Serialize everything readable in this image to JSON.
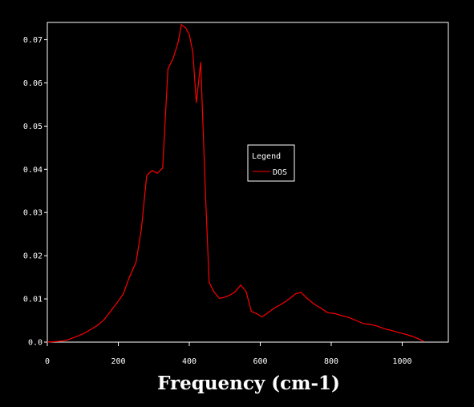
{
  "chart_data": {
    "type": "line",
    "xlabel": "Frequency (cm-1)",
    "ylabel": "",
    "xlim": [
      0,
      1130
    ],
    "ylim": [
      0,
      0.074
    ],
    "x_ticks": [
      {
        "value": 0,
        "label": "0"
      },
      {
        "value": 200,
        "label": "200"
      },
      {
        "value": 400,
        "label": "400"
      },
      {
        "value": 600,
        "label": "600"
      },
      {
        "value": 800,
        "label": "800"
      },
      {
        "value": 1000,
        "label": "1000"
      }
    ],
    "y_ticks": [
      {
        "value": 0.0,
        "label": "0.0"
      },
      {
        "value": 0.01,
        "label": "0.01"
      },
      {
        "value": 0.02,
        "label": "0.02"
      },
      {
        "value": 0.03,
        "label": "0.03"
      },
      {
        "value": 0.04,
        "label": "0.04"
      },
      {
        "value": 0.05,
        "label": "0.05"
      },
      {
        "value": 0.06,
        "label": "0.06"
      },
      {
        "value": 0.07,
        "label": "0.07"
      }
    ],
    "grid": false,
    "legend": {
      "title": "Legend",
      "placement": "center-right"
    },
    "series": [
      {
        "name": "DOS",
        "color": "#ff0000",
        "points": [
          [
            0,
            0.0
          ],
          [
            40,
            0.0002
          ],
          [
            60,
            0.0006
          ],
          [
            80,
            0.0012
          ],
          [
            100,
            0.0019
          ],
          [
            120,
            0.0028
          ],
          [
            140,
            0.0038
          ],
          [
            160,
            0.0052
          ],
          [
            180,
            0.0073
          ],
          [
            200,
            0.0095
          ],
          [
            215,
            0.0113
          ],
          [
            230,
            0.0148
          ],
          [
            250,
            0.0185
          ],
          [
            265,
            0.0262
          ],
          [
            280,
            0.0386
          ],
          [
            295,
            0.0397
          ],
          [
            310,
            0.0391
          ],
          [
            325,
            0.0403
          ],
          [
            340,
            0.0632
          ],
          [
            355,
            0.0658
          ],
          [
            368,
            0.0692
          ],
          [
            378,
            0.0735
          ],
          [
            390,
            0.0727
          ],
          [
            400,
            0.0712
          ],
          [
            410,
            0.0672
          ],
          [
            420,
            0.0554
          ],
          [
            432,
            0.0648
          ],
          [
            446,
            0.0338
          ],
          [
            456,
            0.0138
          ],
          [
            470,
            0.0116
          ],
          [
            485,
            0.0101
          ],
          [
            500,
            0.0104
          ],
          [
            515,
            0.0109
          ],
          [
            530,
            0.0117
          ],
          [
            545,
            0.0132
          ],
          [
            560,
            0.0117
          ],
          [
            575,
            0.0071
          ],
          [
            590,
            0.0066
          ],
          [
            605,
            0.0058
          ],
          [
            620,
            0.0067
          ],
          [
            640,
            0.0079
          ],
          [
            660,
            0.0088
          ],
          [
            680,
            0.0099
          ],
          [
            700,
            0.0112
          ],
          [
            715,
            0.0115
          ],
          [
            730,
            0.0103
          ],
          [
            750,
            0.0089
          ],
          [
            770,
            0.0079
          ],
          [
            790,
            0.0068
          ],
          [
            810,
            0.0066
          ],
          [
            830,
            0.0061
          ],
          [
            850,
            0.0057
          ],
          [
            870,
            0.005
          ],
          [
            890,
            0.0043
          ],
          [
            910,
            0.0041
          ],
          [
            930,
            0.0037
          ],
          [
            950,
            0.0031
          ],
          [
            970,
            0.0027
          ],
          [
            990,
            0.0022
          ],
          [
            1010,
            0.0018
          ],
          [
            1030,
            0.0013
          ],
          [
            1050,
            0.0006
          ],
          [
            1060,
            0.0002
          ]
        ]
      }
    ]
  }
}
